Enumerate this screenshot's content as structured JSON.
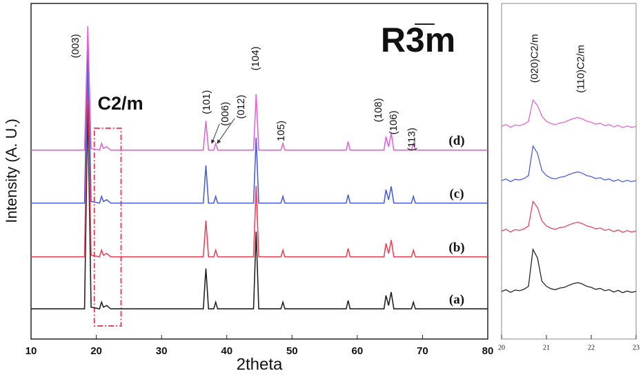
{
  "chart_data": [
    {
      "type": "line",
      "title": "R3̅m",
      "x_label": "2theta",
      "y_label": "Intensity (A. U.)",
      "xlim": [
        10,
        80
      ],
      "xticks": [
        10,
        20,
        30,
        40,
        50,
        60,
        70,
        80
      ],
      "ylim": [
        0,
        100
      ],
      "x": [
        10,
        18.2,
        18.7,
        19.2,
        20.5,
        20.8,
        21.1,
        21.6,
        22.2,
        36.4,
        36.8,
        37.2,
        38.0,
        38.3,
        38.6,
        44.1,
        44.5,
        44.9,
        48.3,
        48.6,
        48.9,
        58.3,
        58.6,
        58.9,
        64.1,
        64.4,
        64.8,
        65.2,
        65.6,
        68.3,
        68.6,
        68.9,
        80
      ],
      "series": [
        {
          "name": "(a)",
          "color": "#222222",
          "values": [
            9,
            9,
            70,
            9.5,
            9,
            11,
            9.5,
            10,
            9,
            9,
            21,
            9,
            9,
            11,
            9,
            9,
            32,
            9,
            9,
            11,
            9,
            9,
            11.5,
            9,
            9,
            13,
            10,
            14,
            9,
            9,
            11,
            9,
            9
          ]
        },
        {
          "name": "(b)",
          "color": "#e8435a",
          "values": [
            24.5,
            24.5,
            80,
            25,
            24.5,
            26.5,
            25,
            25.5,
            24.5,
            24.5,
            35.3,
            24.5,
            24.5,
            26.5,
            24.5,
            24.5,
            45.6,
            24.5,
            24.5,
            26.5,
            24.5,
            24.5,
            27,
            24.5,
            24.5,
            28.5,
            25.5,
            29.5,
            24.5,
            24.5,
            26.5,
            24.5,
            24.5
          ]
        },
        {
          "name": "(c)",
          "color": "#4a5fd6",
          "values": [
            40.5,
            40.5,
            88,
            41,
            40.5,
            42.5,
            41,
            41.5,
            40.5,
            40.5,
            51.7,
            40.5,
            40.5,
            42.5,
            40.5,
            40.5,
            60,
            40.5,
            40.5,
            42.5,
            40.5,
            40.5,
            43,
            40.5,
            40.5,
            44.5,
            41.5,
            45.5,
            40.5,
            40.5,
            42.5,
            40.5,
            40.5
          ]
        },
        {
          "name": "(d)",
          "color": "#e066d6",
          "values": [
            56.3,
            56.3,
            93.2,
            56.8,
            56.3,
            58.3,
            56.8,
            57.3,
            56.3,
            56.3,
            65,
            56.3,
            56.3,
            58.3,
            56.3,
            56.3,
            73,
            56.3,
            56.3,
            58.3,
            56.3,
            56.3,
            58.8,
            56.3,
            56.3,
            60.3,
            57.3,
            61.3,
            56.3,
            56.3,
            58.3,
            56.3,
            56.3
          ]
        }
      ],
      "peak_labels": [
        {
          "text": "(003)",
          "x": 16.9,
          "y": 87.3
        },
        {
          "text": "(101)",
          "x": 36.96,
          "y": 70.6
        },
        {
          "text": "(006)",
          "x": 39.8,
          "y": 67.1
        },
        {
          "text": "(012)",
          "x": 42.25,
          "y": 69.2
        },
        {
          "text": "(104)",
          "x": 44.5,
          "y": 83.6
        },
        {
          "text": "105)",
          "x": 48.4,
          "y": 62
        },
        {
          "text": "(108)",
          "x": 63.3,
          "y": 68.2
        },
        {
          "text": "(106)",
          "x": 65.6,
          "y": 64.5
        },
        {
          "text": "(113)",
          "x": 68.4,
          "y": 59.5
        }
      ],
      "annotations": [
        {
          "text": "C2/m",
          "x": 23.7,
          "y": 69.8
        }
      ],
      "highlight": {
        "x": [
          19.7,
          23.8
        ],
        "y": [
          3.9,
          62.8
        ],
        "color": "#e8435a"
      }
    },
    {
      "type": "line",
      "xlim": [
        20,
        23
      ],
      "xticks": [
        20,
        21,
        22,
        23
      ],
      "ylim": [
        0,
        100
      ],
      "x": [
        20.0,
        20.1,
        20.2,
        20.3,
        20.4,
        20.5,
        20.6,
        20.7,
        20.8,
        20.9,
        21.0,
        21.1,
        21.2,
        21.3,
        21.4,
        21.5,
        21.6,
        21.7,
        21.8,
        21.9,
        22.0,
        22.1,
        22.2,
        22.3,
        22.4,
        22.5,
        22.6,
        22.7,
        22.8,
        22.9,
        23.0
      ],
      "series": [
        {
          "color": "#222222",
          "values": [
            14.2,
            14.7,
            13.9,
            14.6,
            14.4,
            14.8,
            15.7,
            26.7,
            24.2,
            17.2,
            15.7,
            15,
            14.7,
            15.2,
            15.4,
            16,
            16.5,
            16.8,
            16.4,
            15.7,
            15.4,
            14.8,
            15.1,
            14.4,
            14.7,
            14,
            14.5,
            13.8,
            14.3,
            13.9,
            14.2
          ]
        },
        {
          "color": "#e8435a",
          "values": [
            32.2,
            32.7,
            31.9,
            32.6,
            32.4,
            32.8,
            33.7,
            41,
            39.2,
            35.2,
            33.7,
            33,
            32.7,
            33.2,
            33.4,
            34,
            34.5,
            34.8,
            34.4,
            33.7,
            33.4,
            32.8,
            33.1,
            32.4,
            32.7,
            32,
            32.5,
            31.8,
            32.3,
            31.9,
            32.2
          ]
        },
        {
          "color": "#4a5fd6",
          "values": [
            47.2,
            47.7,
            46.9,
            47.6,
            47.4,
            47.8,
            48.7,
            57.5,
            55.4,
            50.2,
            48.7,
            48,
            47.7,
            48.2,
            48.4,
            49,
            49.5,
            49.8,
            49.4,
            48.7,
            48.4,
            47.8,
            48.1,
            47.4,
            47.7,
            47,
            47.5,
            46.8,
            47.3,
            46.9,
            47.2
          ]
        },
        {
          "color": "#e066d6",
          "values": [
            63.4,
            63.9,
            63.1,
            63.8,
            63.6,
            64,
            64.9,
            71.2,
            69.6,
            66.4,
            64.9,
            64.2,
            63.9,
            64.4,
            64.6,
            65.2,
            65.7,
            66,
            65.6,
            64.9,
            64.6,
            64,
            64.3,
            63.6,
            63.9,
            63.2,
            63.7,
            63,
            63.5,
            63.1,
            63.4
          ]
        }
      ],
      "peak_labels": [
        {
          "text": "(020)C2/m",
          "x": 20.75,
          "y": 83.6
        },
        {
          "text": "(110)C2/m",
          "x": 21.78,
          "y": 80.5
        }
      ]
    }
  ]
}
